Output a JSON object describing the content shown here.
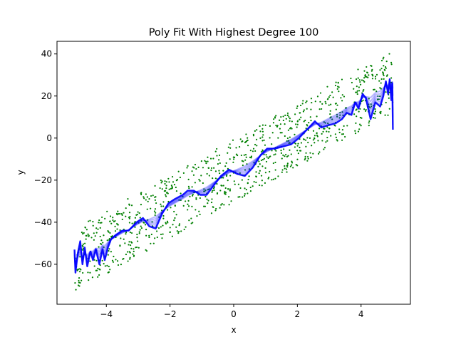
{
  "chart_data": {
    "type": "scatter",
    "title": "Poly Fit With Highest Degree 100",
    "xlabel": "x",
    "ylabel": "y",
    "xlim": [
      -5.55,
      5.55
    ],
    "ylim": [
      -79,
      46
    ],
    "xticks": [
      -4,
      -2,
      0,
      2,
      4
    ],
    "yticks": [
      -60,
      -40,
      -20,
      0,
      20,
      40
    ],
    "grid": false,
    "legend": "none",
    "scatter": {
      "color": "#008000",
      "n_points": 1000,
      "x_range": [
        -5,
        5
      ],
      "trend": {
        "slope": 8.5,
        "intercept": -15.5
      },
      "spread": 15
    },
    "fit_curves": {
      "color": "#0000ff",
      "count": 6,
      "alpha": 0.28,
      "bold_points": [
        [
          -5.0,
          -53
        ],
        [
          -4.97,
          -64
        ],
        [
          -4.9,
          -55
        ],
        [
          -4.82,
          -49
        ],
        [
          -4.75,
          -60
        ],
        [
          -4.68,
          -52
        ],
        [
          -4.6,
          -61
        ],
        [
          -4.5,
          -54
        ],
        [
          -4.42,
          -58
        ],
        [
          -4.33,
          -53
        ],
        [
          -4.22,
          -60
        ],
        [
          -4.12,
          -53
        ],
        [
          -4.05,
          -58
        ],
        [
          -3.95,
          -52
        ],
        [
          -3.85,
          -48
        ],
        [
          -3.7,
          -46
        ],
        [
          -3.5,
          -44
        ],
        [
          -3.3,
          -44
        ],
        [
          -3.05,
          -40
        ],
        [
          -2.85,
          -38
        ],
        [
          -2.65,
          -42
        ],
        [
          -2.45,
          -43
        ],
        [
          -2.25,
          -36
        ],
        [
          -2.05,
          -31
        ],
        [
          -1.85,
          -29
        ],
        [
          -1.6,
          -27
        ],
        [
          -1.45,
          -25
        ],
        [
          -1.25,
          -25
        ],
        [
          -1.05,
          -27
        ],
        [
          -0.85,
          -27
        ],
        [
          -0.65,
          -23
        ],
        [
          -0.4,
          -18
        ],
        [
          -0.15,
          -15
        ],
        [
          0.1,
          -17
        ],
        [
          0.35,
          -18
        ],
        [
          0.6,
          -14
        ],
        [
          0.85,
          -8
        ],
        [
          1.05,
          -5
        ],
        [
          1.3,
          -5
        ],
        [
          1.55,
          -4
        ],
        [
          1.8,
          -3
        ],
        [
          2.05,
          0
        ],
        [
          2.3,
          4
        ],
        [
          2.55,
          8
        ],
        [
          2.75,
          5
        ],
        [
          2.95,
          6
        ],
        [
          3.2,
          7
        ],
        [
          3.4,
          9
        ],
        [
          3.55,
          12
        ],
        [
          3.7,
          11
        ],
        [
          3.82,
          17
        ],
        [
          3.92,
          14
        ],
        [
          4.05,
          21
        ],
        [
          4.15,
          19
        ],
        [
          4.3,
          9
        ],
        [
          4.45,
          17
        ],
        [
          4.6,
          15
        ],
        [
          4.7,
          20
        ],
        [
          4.78,
          27
        ],
        [
          4.85,
          21
        ],
        [
          4.9,
          28
        ],
        [
          4.95,
          18
        ],
        [
          4.98,
          26
        ],
        [
          5.0,
          4
        ]
      ]
    }
  }
}
